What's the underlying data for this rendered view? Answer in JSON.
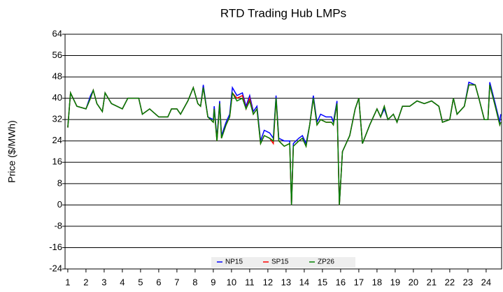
{
  "chart_data": {
    "type": "line",
    "title": "RTD Trading Hub LMPs",
    "y_label": "Price ($/MWh)",
    "x": [
      1,
      1.15,
      1.5,
      2,
      2.25,
      2.4,
      2.6,
      2.9,
      3.05,
      3.4,
      3.7,
      4,
      4.3,
      4.9,
      5.1,
      5.5,
      6,
      6.5,
      6.7,
      7,
      7.2,
      7.6,
      7.9,
      8.15,
      8.3,
      8.45,
      8.7,
      9,
      9.05,
      9.2,
      9.35,
      9.45,
      9.7,
      9.9,
      10.05,
      10.3,
      10.6,
      10.8,
      11,
      11.2,
      11.4,
      11.6,
      11.8,
      12.1,
      12.3,
      12.45,
      12.6,
      12.9,
      13.2,
      13.3,
      13.4,
      13.7,
      13.9,
      14.1,
      14.3,
      14.5,
      14.7,
      14.9,
      15.2,
      15.5,
      15.6,
      15.8,
      15.93,
      16.1,
      16.5,
      16.8,
      17,
      17.2,
      17.6,
      18,
      18.2,
      18.4,
      18.6,
      18.9,
      19.1,
      19.4,
      19.8,
      20.2,
      20.6,
      21,
      21.4,
      21.6,
      22,
      22.2,
      22.4,
      22.8,
      23.05,
      23.4,
      23.6,
      23.9,
      24.1,
      24.2,
      24.5,
      24.75,
      24.8
    ],
    "series": [
      {
        "name": "NP15",
        "color": "#0000ff",
        "values": [
          29,
          42,
          37,
          36,
          41,
          43,
          38,
          35,
          42,
          38,
          37,
          36,
          40,
          40,
          34,
          36,
          33,
          33,
          36,
          36,
          34,
          39,
          44,
          38,
          37,
          45,
          33,
          32,
          37,
          25,
          39,
          26,
          31,
          34,
          44,
          41,
          42,
          37,
          41,
          35,
          37,
          24,
          28,
          27,
          25,
          41,
          25,
          24,
          24,
          0,
          23,
          25,
          26,
          23,
          30,
          41,
          31,
          34,
          33,
          33,
          31,
          39,
          0,
          20,
          26,
          36,
          40,
          23,
          30,
          36,
          33,
          36,
          32,
          34,
          31,
          37,
          37,
          39,
          38,
          39,
          37,
          31,
          32,
          40,
          34,
          37,
          46,
          45,
          40,
          32,
          32,
          46,
          38,
          31,
          34
        ]
      },
      {
        "name": "SP15",
        "color": "#ff0000",
        "values": [
          29,
          42,
          37,
          36,
          40,
          43,
          38,
          35,
          42,
          38,
          37,
          36,
          40,
          40,
          34,
          36,
          33,
          33,
          36,
          36,
          34,
          39,
          44,
          38,
          37,
          44,
          33,
          31,
          36,
          24,
          38,
          25,
          30,
          33,
          42,
          40,
          41,
          36,
          40,
          34,
          36,
          23,
          26,
          25,
          23,
          40,
          24,
          22,
          23,
          0,
          22,
          24,
          25,
          22,
          30,
          40,
          30,
          32,
          31,
          31,
          30,
          38,
          0,
          20,
          26,
          36,
          40,
          23,
          30,
          36,
          33,
          37,
          32,
          34,
          31,
          37,
          37,
          39,
          38,
          39,
          37,
          31,
          32,
          40,
          34,
          37,
          45,
          45,
          40,
          32,
          32,
          45,
          37,
          30,
          31
        ]
      },
      {
        "name": "ZP26",
        "color": "#008000",
        "values": [
          29,
          42,
          37,
          36,
          40,
          43,
          38,
          35,
          42,
          38,
          37,
          36,
          40,
          40,
          34,
          36,
          33,
          33,
          36,
          36,
          34,
          39,
          44,
          38,
          37,
          44,
          33,
          31,
          36,
          24,
          38,
          25,
          30,
          33,
          42,
          39,
          40,
          36,
          39,
          34,
          36,
          23,
          26,
          25,
          24,
          40,
          24,
          22,
          23,
          0,
          22,
          24,
          25,
          22,
          30,
          40,
          30,
          32,
          31,
          31,
          30,
          38,
          0,
          20,
          26,
          36,
          40,
          23,
          30,
          36,
          33,
          37,
          32,
          34,
          31,
          37,
          37,
          39,
          38,
          39,
          37,
          31,
          32,
          40,
          34,
          37,
          45,
          45,
          40,
          32,
          32,
          45,
          37,
          30,
          31
        ]
      }
    ],
    "xlim": [
      0.85,
      24.85
    ],
    "xticks": [
      1,
      2,
      3,
      4,
      5,
      6,
      7,
      8,
      9,
      10,
      11,
      12,
      13,
      14,
      15,
      16,
      17,
      18,
      19,
      20,
      21,
      22,
      23,
      24
    ],
    "ylim": [
      -24,
      64
    ],
    "yticks": [
      -24,
      -16,
      -8,
      0,
      8,
      16,
      24,
      32,
      40,
      48,
      56,
      64
    ],
    "grid": true,
    "legend": "lower center"
  }
}
